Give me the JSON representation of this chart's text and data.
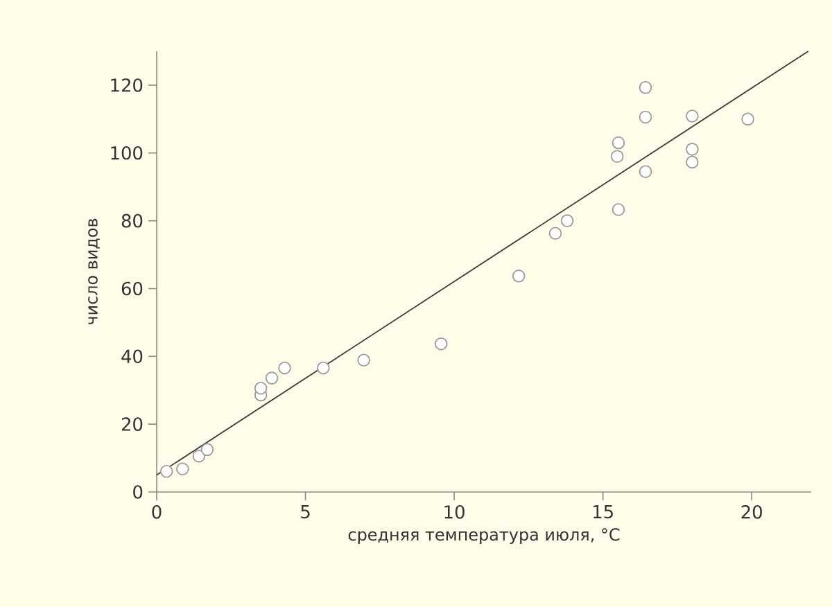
{
  "chart_data": {
    "type": "scatter",
    "xlabel": "средняя температура июля, °C",
    "ylabel": "число видов",
    "xlim": [
      0,
      22
    ],
    "ylim": [
      0,
      130
    ],
    "xticks": [
      0,
      5,
      10,
      15,
      20
    ],
    "yticks": [
      0,
      20,
      40,
      60,
      80,
      100,
      120
    ],
    "grid": false,
    "series": [
      {
        "marker": "circle",
        "color": "#9a9a9a",
        "x": [
          0.33,
          0.87,
          1.42,
          1.7,
          3.5,
          3.5,
          3.87,
          4.3,
          5.6,
          6.96,
          9.56,
          12.17,
          13.4,
          13.8,
          15.52,
          15.52,
          15.48,
          16.43,
          16.43,
          16.43,
          18.0,
          18.0,
          18.0,
          19.87
        ],
        "values": [
          6.1,
          6.8,
          10.6,
          12.5,
          28.6,
          30.6,
          33.6,
          36.6,
          36.6,
          38.9,
          43.7,
          63.7,
          76.3,
          80,
          83.3,
          103,
          99,
          94.5,
          110.6,
          119.3,
          110.9,
          101.1,
          97.3,
          110
        ]
      },
      {
        "type": "line",
        "marker": "none",
        "color": "#3c3c3c",
        "x": [
          0,
          21.9
        ],
        "values": [
          5,
          130
        ]
      }
    ]
  }
}
